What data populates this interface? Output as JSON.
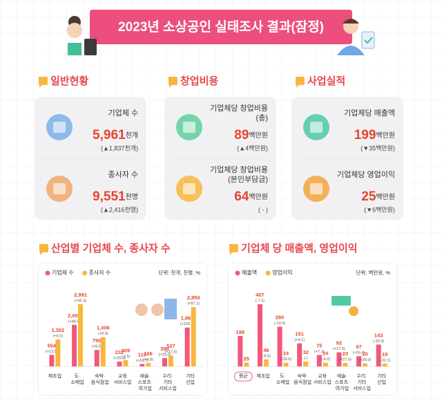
{
  "title": "2023년 소상공인 실태조사 결과(잠정)",
  "summary": [
    {
      "heading": "일반현황",
      "items": [
        {
          "label": [
            "기업체 수"
          ],
          "value": "5,961",
          "unit": "천개",
          "change": "(▲1,837천개)"
        },
        {
          "label": [
            "종사자 수"
          ],
          "value": "9,551",
          "unit": "천명",
          "change": "(▲2,416천명)"
        }
      ]
    },
    {
      "heading": "창업비용",
      "items": [
        {
          "label": [
            "기업체당 창업비용",
            "(총)"
          ],
          "value": "89",
          "unit": "백만원",
          "change": "(▲4백만원)"
        },
        {
          "label": [
            "기업체당 창업비용",
            "(본인부담금)"
          ],
          "value": "64",
          "unit": "백만원",
          "change": "( - )"
        }
      ]
    },
    {
      "heading": "사업실적",
      "items": [
        {
          "label": [
            "기업체당 매출액"
          ],
          "value": "199",
          "unit": "백만원",
          "change": "(▼35백만원)"
        },
        {
          "label": [
            "기업체당 영업이익"
          ],
          "value": "25",
          "unit": "백만원",
          "change": "(▼6백만원)"
        }
      ]
    }
  ],
  "chart_data": [
    {
      "type": "bar",
      "title": "산업별 기업체 수, 종사자 수",
      "unit_note": "단위: 천개, 천명, %",
      "categories": [
        [
          "제조업"
        ],
        [
          "도·",
          "소매업"
        ],
        [
          "숙박·",
          "음식점업"
        ],
        [
          "교육",
          "서비스업"
        ],
        [
          "예술·",
          "스포츠·",
          "여가업"
        ],
        [
          "수리·",
          "기타",
          "서비스업"
        ],
        [
          "기타",
          "산업"
        ]
      ],
      "series": [
        {
          "name": "기업체 수",
          "color": "#f2587c",
          "values": [
            554,
            2000,
            790,
            232,
            119,
            398,
            1869
          ],
          "value_labels": [
            "554",
            "2,000",
            "790",
            "232",
            "119",
            "398",
            "1,869"
          ],
          "change_labels": [
            "(+13.5)",
            "(+48.0)",
            "(+8.5)",
            "(+25.4)",
            "(+16.7)",
            "(+15.0)",
            "(+102.3)"
          ]
        },
        {
          "name": "종사자 수",
          "color": "#f8b73c",
          "values": [
            1302,
            2991,
            1406,
            309,
            166,
            527,
            2850
          ],
          "value_labels": [
            "1,302",
            "2,991",
            "1,406",
            "309",
            "166",
            "527",
            "2,850"
          ],
          "change_labels": [
            "(+6.0)",
            "(+45.4)",
            "(+0.3)",
            "(-2.5)",
            "(+3.8)",
            "(+17.6)",
            "(+87.1)"
          ]
        }
      ]
    },
    {
      "type": "bar",
      "title": "기업체 당 매출액, 영업이익",
      "unit_note": "단위: 백만원, %",
      "categories": [
        [
          "평균"
        ],
        [
          "제조업"
        ],
        [
          "도·",
          "소매업"
        ],
        [
          "숙박·",
          "음식점업"
        ],
        [
          "교육",
          "서비스업"
        ],
        [
          "예술·",
          "스포츠·",
          "여가업"
        ],
        [
          "수리·",
          "기타",
          "서비스업"
        ],
        [
          "기타",
          "산업"
        ]
      ],
      "series": [
        {
          "name": "매출액",
          "color": "#f2587c",
          "values": [
            199,
            407,
            260,
            151,
            75,
            92,
            67,
            143
          ],
          "change_labels": [
            null,
            "(-7.5)",
            "(-13.9)",
            "(+4.1)",
            "(+7.1)",
            "(+17.6)",
            "(+26.4)",
            "(-32.9)"
          ]
        },
        {
          "name": "영업이익",
          "color": "#f8b73c",
          "values": [
            25,
            46,
            24,
            32,
            24,
            23,
            20,
            19
          ],
          "change_labels": [
            null,
            "(-8.0)",
            "(-26.0)",
            "(-)",
            "(-4.0)",
            "(+27.0)",
            "(+25.0)",
            "(-32.1)"
          ]
        }
      ]
    }
  ]
}
